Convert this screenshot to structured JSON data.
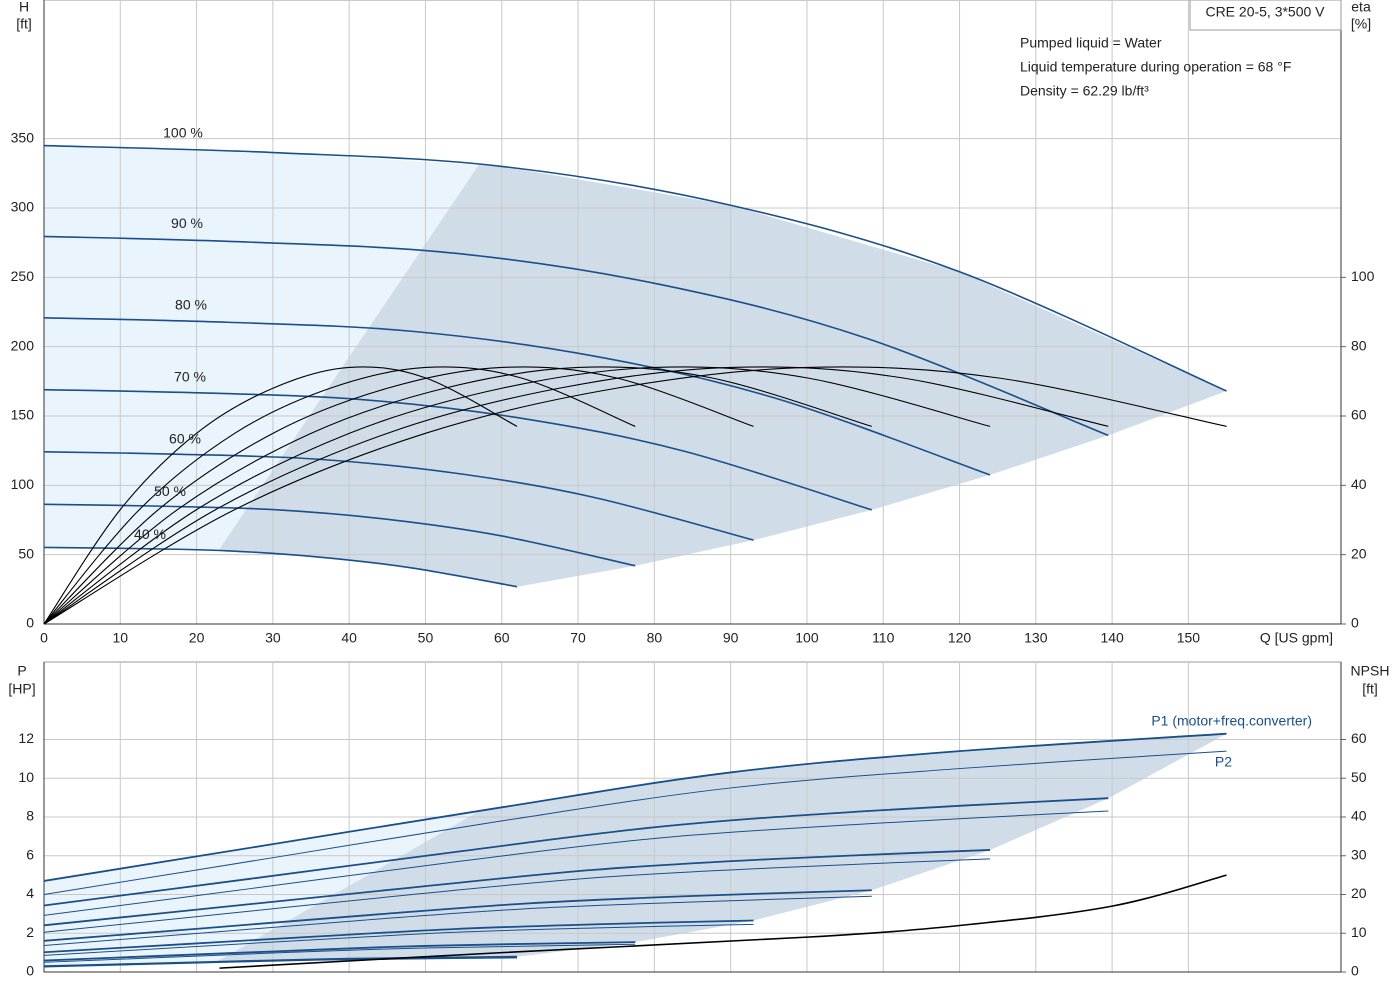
{
  "chart_data": [
    {
      "type": "line",
      "title": "CRE 20-5, 3*500 V",
      "notes": [
        "Pumped liquid = Water",
        "Liquid temperature during operation = 68 °F",
        "Density = 62.29 lb/ft³"
      ],
      "y_label": "H",
      "y_unit": "[ft]",
      "y2_label": "eta",
      "y2_unit": "[%]",
      "x_label": "Q [US gpm]",
      "xlim": [
        0,
        170
      ],
      "xticks": [
        0,
        10,
        20,
        30,
        40,
        50,
        60,
        70,
        80,
        90,
        100,
        110,
        120,
        130,
        140,
        150
      ],
      "ylim": [
        0,
        450
      ],
      "yticks": [
        0,
        50,
        100,
        150,
        200,
        250,
        300,
        350
      ],
      "y2lim": [
        0,
        180
      ],
      "y2ticks": [
        0,
        20,
        40,
        60,
        80,
        100
      ],
      "grid": true,
      "series": [
        {
          "name": "100 %",
          "color": "#1a4f8a",
          "x": [
            0,
            30,
            60,
            90,
            120,
            155
          ],
          "values": [
            345,
            340,
            330,
            302,
            254,
            168
          ]
        },
        {
          "name": "90 %",
          "color": "#1a4f8a",
          "x": [
            0,
            27,
            54,
            81,
            108,
            139.5
          ],
          "values": [
            279.5,
            275.4,
            267.3,
            244.6,
            205.7,
            136
          ]
        },
        {
          "name": "80 %",
          "color": "#1a4f8a",
          "x": [
            0,
            24,
            48,
            72,
            96,
            124
          ],
          "values": [
            220.8,
            217.6,
            211.2,
            193.3,
            162.6,
            107.5
          ]
        },
        {
          "name": "70 %",
          "color": "#1a4f8a",
          "x": [
            0,
            21,
            42,
            63,
            84,
            108.5
          ],
          "values": [
            169,
            166.6,
            161.7,
            148,
            124.5,
            82.3
          ]
        },
        {
          "name": "60 %",
          "color": "#1a4f8a",
          "x": [
            0,
            18,
            36,
            54,
            72,
            93
          ],
          "values": [
            124.2,
            122.4,
            118.8,
            108.7,
            91.4,
            60.5
          ]
        },
        {
          "name": "50 %",
          "color": "#1a4f8a",
          "x": [
            0,
            15,
            30,
            45,
            60,
            77.5
          ],
          "values": [
            86.3,
            85,
            82.5,
            75.5,
            63.5,
            42
          ]
        },
        {
          "name": "40 %",
          "color": "#1a4f8a",
          "x": [
            0,
            12,
            24,
            36,
            48,
            62
          ],
          "values": [
            55.2,
            54.4,
            52.8,
            48.3,
            40.6,
            26.9
          ]
        },
        {
          "color": "#000000",
          "axis": "y2",
          "x": [
            0,
            25,
            50,
            75,
            100,
            125,
            155
          ],
          "values": [
            0,
            33,
            55,
            68,
            74,
            71,
            57
          ]
        },
        {
          "color": "#000000",
          "axis": "y2",
          "x": [
            0,
            22.5,
            45,
            67.5,
            90,
            112.5,
            139.5
          ],
          "values": [
            0,
            33,
            55,
            68,
            74,
            71,
            57
          ]
        },
        {
          "color": "#000000",
          "axis": "y2",
          "x": [
            0,
            20,
            40,
            60,
            80,
            100,
            124
          ],
          "values": [
            0,
            33,
            55,
            68,
            74,
            71,
            57
          ]
        },
        {
          "color": "#000000",
          "axis": "y2",
          "x": [
            0,
            17.5,
            35,
            52.5,
            70,
            87.5,
            108.5
          ],
          "values": [
            0,
            33,
            55,
            68,
            74,
            71,
            57
          ]
        },
        {
          "color": "#000000",
          "axis": "y2",
          "x": [
            0,
            15,
            30,
            45,
            60,
            75,
            93
          ],
          "values": [
            0,
            33,
            55,
            68,
            74,
            71,
            57
          ]
        },
        {
          "color": "#000000",
          "axis": "y2",
          "x": [
            0,
            12.5,
            25,
            37.5,
            50,
            62.5,
            77.5
          ],
          "values": [
            0,
            33,
            55,
            68,
            74,
            71,
            57
          ]
        },
        {
          "color": "#000000",
          "axis": "y2",
          "x": [
            0,
            10,
            20,
            30,
            40,
            50,
            62
          ],
          "values": [
            0,
            33,
            55,
            68,
            74,
            71,
            57
          ]
        }
      ]
    },
    {
      "type": "line",
      "y_label": "P",
      "y_unit": "[HP]",
      "y2_label": "NPSH",
      "y2_unit": "[ft]",
      "xlim": [
        0,
        170
      ],
      "ylim": [
        0,
        16
      ],
      "yticks": [
        0,
        2,
        4,
        6,
        8,
        10,
        12
      ],
      "y2lim": [
        0,
        80
      ],
      "y2ticks": [
        0,
        10,
        20,
        30,
        40,
        50,
        60
      ],
      "grid": true,
      "series": [
        {
          "name": "P1 (motor+freq.converter)",
          "color": "#1a4f8a",
          "x": [
            0,
            30,
            60,
            90,
            120,
            155
          ],
          "values": [
            4.7,
            6.6,
            8.5,
            10.3,
            11.4,
            12.3
          ]
        },
        {
          "color": "#1a4f8a",
          "x": [
            0,
            27,
            54,
            81,
            108,
            139.5
          ],
          "values": [
            3.43,
            4.81,
            6.2,
            7.51,
            8.31,
            8.97
          ]
        },
        {
          "color": "#1a4f8a",
          "x": [
            0,
            24,
            48,
            72,
            96,
            124
          ],
          "values": [
            2.41,
            3.38,
            4.35,
            5.27,
            5.84,
            6.3
          ]
        },
        {
          "color": "#1a4f8a",
          "x": [
            0,
            21,
            42,
            63,
            84,
            108.5
          ],
          "values": [
            1.61,
            2.26,
            2.92,
            3.53,
            3.91,
            4.22
          ]
        },
        {
          "color": "#1a4f8a",
          "x": [
            0,
            18,
            36,
            54,
            72,
            93
          ],
          "values": [
            1.02,
            1.43,
            1.84,
            2.22,
            2.46,
            2.66
          ]
        },
        {
          "color": "#1a4f8a",
          "x": [
            0,
            15,
            30,
            45,
            60,
            77.5
          ],
          "values": [
            0.59,
            0.83,
            1.06,
            1.29,
            1.43,
            1.54
          ]
        },
        {
          "color": "#1a4f8a",
          "x": [
            0,
            12,
            24,
            36,
            48,
            62
          ],
          "values": [
            0.3,
            0.42,
            0.54,
            0.66,
            0.73,
            0.79
          ]
        },
        {
          "name": "P2",
          "color": "#1a4f8a",
          "x": [
            0,
            30,
            60,
            90,
            120,
            155
          ],
          "values": [
            4.0,
            5.9,
            7.8,
            9.5,
            10.5,
            11.4
          ]
        },
        {
          "color": "#1a4f8a",
          "x": [
            0,
            27,
            54,
            81,
            108,
            139.5
          ],
          "values": [
            2.92,
            4.3,
            5.69,
            6.93,
            7.65,
            8.31
          ]
        },
        {
          "color": "#1a4f8a",
          "x": [
            0,
            24,
            48,
            72,
            96,
            124
          ],
          "values": [
            2.05,
            3.02,
            3.99,
            4.86,
            5.38,
            5.84
          ]
        },
        {
          "color": "#1a4f8a",
          "x": [
            0,
            21,
            42,
            63,
            84,
            108.5
          ],
          "values": [
            1.37,
            2.02,
            2.68,
            3.26,
            3.6,
            3.91
          ]
        },
        {
          "color": "#1a4f8a",
          "x": [
            0,
            18,
            36,
            54,
            72,
            93
          ],
          "values": [
            0.86,
            1.27,
            1.68,
            2.05,
            2.27,
            2.46
          ]
        },
        {
          "color": "#1a4f8a",
          "x": [
            0,
            15,
            30,
            45,
            60,
            77.5
          ],
          "values": [
            0.5,
            0.74,
            0.98,
            1.19,
            1.31,
            1.43
          ]
        },
        {
          "color": "#1a4f8a",
          "x": [
            0,
            12,
            24,
            36,
            48,
            62
          ],
          "values": [
            0.26,
            0.38,
            0.5,
            0.61,
            0.67,
            0.73
          ]
        },
        {
          "color": "#000000",
          "axis": "y2",
          "x": [
            23,
            60,
            100,
            120,
            140,
            155
          ],
          "values": [
            1,
            5,
            9,
            12,
            17,
            25
          ]
        }
      ]
    }
  ]
}
